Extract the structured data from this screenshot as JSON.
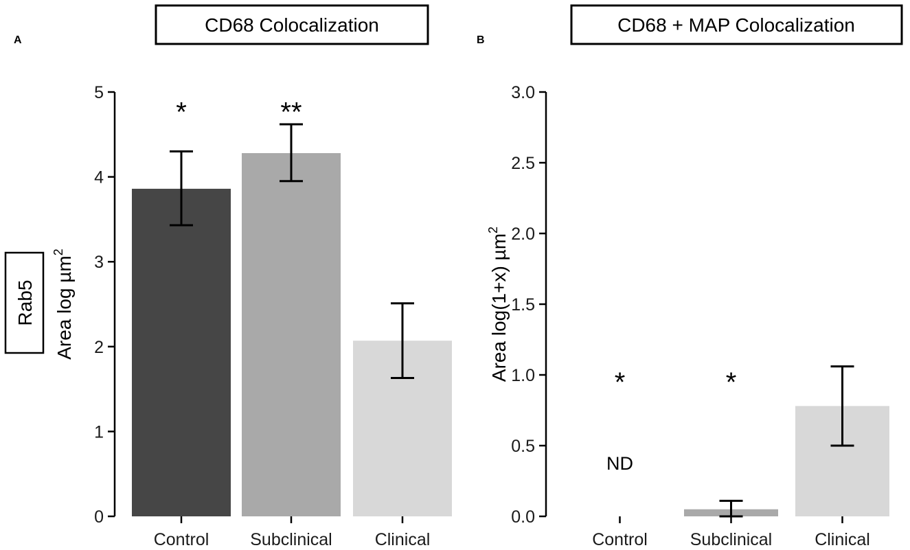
{
  "figure": {
    "row_label": "Rab5"
  },
  "chart_data": [
    {
      "panel": "A",
      "type": "bar",
      "title": "CD68 Colocalization",
      "ylabel": "Area log µm",
      "ylabel_sup": "2",
      "ylim": [
        0,
        5
      ],
      "yticks": [
        "0",
        "1",
        "2",
        "3",
        "4",
        "5"
      ],
      "categories": [
        "Control",
        "Subclinical",
        "Clinical"
      ],
      "values": [
        3.86,
        4.28,
        2.07
      ],
      "errors_low": [
        3.43,
        3.95,
        1.63
      ],
      "errors_high": [
        4.3,
        4.62,
        2.51
      ],
      "colors": [
        "#464646",
        "#a9a9a9",
        "#d8d8d8"
      ],
      "annotations": [
        "*",
        "**",
        ""
      ],
      "annotation_y": [
        4.85,
        4.85,
        null
      ],
      "nd_labels": [
        "",
        "",
        ""
      ]
    },
    {
      "panel": "B",
      "type": "bar",
      "title": "CD68 + MAP Colocalization",
      "ylabel": "Area log(1+x) µm",
      "ylabel_sup": "2",
      "ylim": [
        0,
        3.0
      ],
      "yticks": [
        "0.0",
        "0.5",
        "1.0",
        "1.5",
        "2.0",
        "2.5",
        "3.0"
      ],
      "categories": [
        "Control",
        "Subclinical",
        "Clinical"
      ],
      "values": [
        0,
        0.05,
        0.78
      ],
      "errors_low": [
        null,
        0.0,
        0.5
      ],
      "errors_high": [
        null,
        0.11,
        1.06
      ],
      "colors": [
        "#464646",
        "#a9a9a9",
        "#d8d8d8"
      ],
      "annotations": [
        "*",
        "*",
        ""
      ],
      "annotation_y": [
        1.0,
        1.0,
        null
      ],
      "nd_labels": [
        "ND",
        "",
        ""
      ]
    }
  ]
}
